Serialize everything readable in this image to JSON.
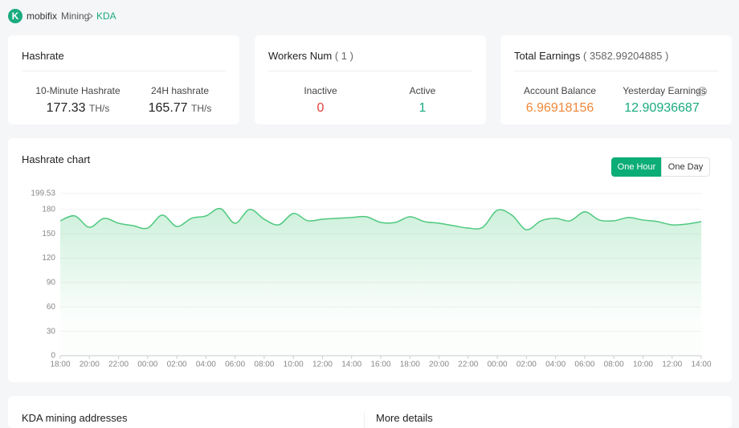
{
  "breadcrumb": {
    "brand": "mobifix",
    "items": [
      "Mining",
      "KDA"
    ]
  },
  "hashrate_card": {
    "title": "Hashrate",
    "items": [
      {
        "label": "10-Minute Hashrate",
        "value": "177.33",
        "unit": "TH/s"
      },
      {
        "label": "24H hashrate",
        "value": "165.77",
        "unit": "TH/s"
      }
    ]
  },
  "workers_card": {
    "title": "Workers Num",
    "count": "( 1 )",
    "items": [
      {
        "label": "Inactive",
        "value": "0"
      },
      {
        "label": "Active",
        "value": "1"
      }
    ]
  },
  "earnings_card": {
    "title": "Total Earnings",
    "total": "( 3582.99204885 )",
    "items": [
      {
        "label": "Account Balance",
        "value": "6.96918156"
      },
      {
        "label": "Yesterday Earnings",
        "value": "12.90936687"
      }
    ]
  },
  "chart_card": {
    "title": "Hashrate chart",
    "buttons": [
      "One Hour",
      "One Day"
    ]
  },
  "bottom": {
    "left_title": "KDA mining addresses",
    "right_title": "More details"
  },
  "chart_data": {
    "type": "line",
    "categories": [
      "18:00",
      null,
      "20:00",
      null,
      "22:00",
      null,
      "00:00",
      null,
      "02:00",
      null,
      "04:00",
      null,
      "06:00",
      null,
      "08:00",
      null,
      "10:00",
      null,
      "12:00",
      null,
      "14:00",
      null,
      "16:00",
      null,
      "18:00",
      null,
      "20:00",
      null,
      "22:00",
      null,
      "00:00",
      null,
      "02:00",
      null,
      "04:00",
      null,
      "06:00",
      null,
      "08:00",
      null,
      "10:00",
      null,
      "12:00",
      null,
      "14:00"
    ],
    "series": [
      {
        "name": "Hashrate",
        "color": "#4fc97f",
        "values": [
          166,
          172,
          158,
          169,
          163,
          160,
          157,
          173,
          159,
          169,
          172,
          181,
          163,
          180,
          168,
          161,
          175,
          166,
          168,
          169,
          170,
          171,
          164,
          164,
          171,
          165,
          163,
          160,
          157,
          158,
          179,
          173,
          155,
          166,
          169,
          166,
          177,
          167,
          166,
          170,
          167,
          165,
          161,
          162,
          165
        ]
      }
    ],
    "ylim": [
      0,
      199.53
    ],
    "yticks": [
      0,
      30,
      60,
      90,
      120,
      150,
      180,
      199.53
    ],
    "grid": true
  }
}
